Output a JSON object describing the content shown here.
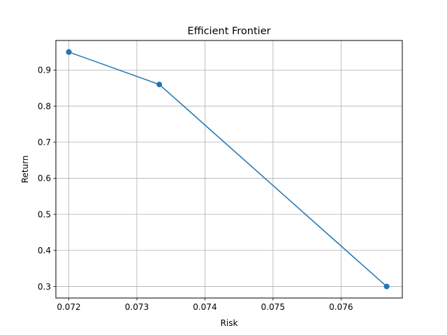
{
  "chart_data": {
    "type": "line",
    "title": "Efficient Frontier",
    "xlabel": "Risk",
    "ylabel": "Return",
    "xlim": [
      0.07181,
      0.0769
    ],
    "ylim": [
      0.268,
      0.982
    ],
    "xticks": [
      0.072,
      0.073,
      0.074,
      0.075,
      0.076
    ],
    "xtick_labels": [
      "0.072",
      "0.073",
      "0.074",
      "0.075",
      "0.076"
    ],
    "yticks": [
      0.3,
      0.4,
      0.5,
      0.6,
      0.7,
      0.8,
      0.9
    ],
    "ytick_labels": [
      "0.3",
      "0.4",
      "0.5",
      "0.6",
      "0.7",
      "0.8",
      "0.9"
    ],
    "grid": true,
    "series": [
      {
        "color": "#1f77b4",
        "marker": "circle",
        "points": [
          {
            "x": 0.072,
            "y": 0.95
          },
          {
            "x": 0.072,
            "y": 0.95
          },
          {
            "x": 0.07333,
            "y": 0.86
          },
          {
            "x": 0.07667,
            "y": 0.3
          }
        ]
      }
    ]
  }
}
